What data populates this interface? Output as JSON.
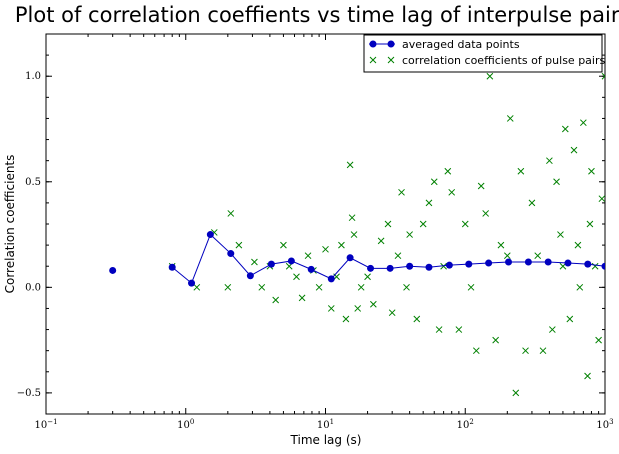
{
  "chart_data": {
    "type": "scatter",
    "title": "Plot of correlation coeffients vs time lag of interpulse pairs.",
    "xlabel": "Time lag (s)",
    "ylabel": "Correlation coefficients",
    "x_scale": "log",
    "xlim": [
      0.1,
      1000
    ],
    "ylim": [
      -0.6,
      1.2
    ],
    "x_ticks": [
      {
        "value": 0.1,
        "base": "10",
        "exp": "−1"
      },
      {
        "value": 1,
        "base": "10",
        "exp": "0"
      },
      {
        "value": 10,
        "base": "10",
        "exp": "1"
      },
      {
        "value": 100,
        "base": "10",
        "exp": "2"
      },
      {
        "value": 1000,
        "base": "10",
        "exp": "3"
      }
    ],
    "y_ticks": [
      {
        "value": -0.5,
        "label": "−0.5"
      },
      {
        "value": 0.0,
        "label": "0.0"
      },
      {
        "value": 0.5,
        "label": "0.5"
      },
      {
        "value": 1.0,
        "label": "1.0"
      }
    ],
    "grid": false,
    "legend_position": "top-right",
    "series": [
      {
        "name": "averaged data points",
        "marker": "circle",
        "line": true,
        "color": "#0000bf",
        "x": [
          0.3,
          0.8,
          1.1,
          1.5,
          2.1,
          2.9,
          4.1,
          5.7,
          7.9,
          11,
          15,
          21,
          29,
          40,
          55,
          77,
          106,
          147,
          204,
          283,
          392,
          543,
          753,
          1000
        ],
        "y": [
          0.08,
          0.095,
          0.02,
          0.25,
          0.16,
          0.055,
          0.11,
          0.125,
          0.085,
          0.04,
          0.14,
          0.09,
          0.09,
          0.1,
          0.095,
          0.105,
          0.11,
          0.115,
          0.12,
          0.12,
          0.12,
          0.115,
          0.11,
          0.1
        ]
      },
      {
        "name": "correlation coefficients of pulse pairs",
        "marker": "x",
        "line": false,
        "color": "#008000",
        "x": [
          0.8,
          1.2,
          1.6,
          2.0,
          2.1,
          2.4,
          3.1,
          3.5,
          4.0,
          4.4,
          5.0,
          5.5,
          6.2,
          6.8,
          7.5,
          8.2,
          9.0,
          10,
          11,
          12,
          13,
          14,
          15,
          15.5,
          16,
          17,
          18,
          20,
          22,
          25,
          28,
          30,
          33,
          35,
          38,
          40,
          45,
          50,
          55,
          60,
          65,
          70,
          75,
          80,
          90,
          100,
          110,
          120,
          130,
          140,
          150,
          165,
          180,
          200,
          210,
          230,
          250,
          270,
          300,
          330,
          360,
          400,
          420,
          450,
          480,
          500,
          520,
          560,
          600,
          640,
          660,
          700,
          750,
          780,
          800,
          850,
          900,
          950,
          1000
        ],
        "y": [
          0.1,
          0.0,
          0.26,
          0.0,
          0.35,
          0.2,
          0.12,
          0.0,
          0.1,
          -0.06,
          0.2,
          0.1,
          0.05,
          -0.05,
          0.15,
          0.08,
          0.0,
          0.18,
          -0.1,
          0.05,
          0.2,
          -0.15,
          0.58,
          0.33,
          0.25,
          -0.1,
          0.0,
          0.05,
          -0.08,
          0.22,
          0.3,
          -0.12,
          0.15,
          0.45,
          0.0,
          0.25,
          -0.15,
          0.3,
          0.4,
          0.5,
          -0.2,
          0.1,
          0.55,
          0.45,
          -0.2,
          0.3,
          0.0,
          -0.3,
          0.48,
          0.35,
          1.0,
          -0.25,
          0.2,
          0.15,
          0.8,
          -0.5,
          0.55,
          -0.3,
          0.4,
          0.15,
          -0.3,
          0.6,
          -0.2,
          0.5,
          0.25,
          0.1,
          0.75,
          -0.15,
          0.65,
          0.2,
          0.0,
          0.78,
          -0.42,
          0.3,
          0.55,
          0.1,
          -0.25,
          0.42,
          1.0
        ]
      }
    ]
  }
}
